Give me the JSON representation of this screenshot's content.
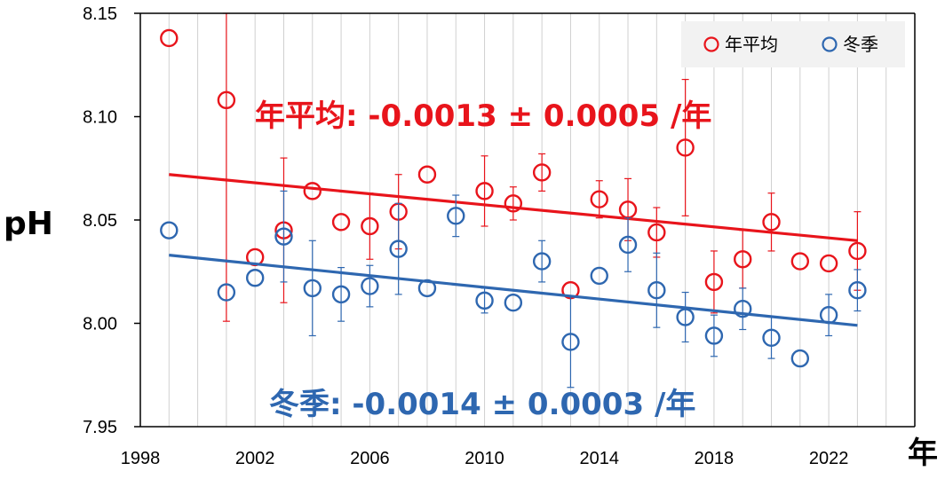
{
  "chart_data": {
    "type": "scatter",
    "xlabel": "年",
    "ylabel": "pH",
    "xlim": [
      1998,
      2025
    ],
    "ylim": [
      7.95,
      8.15
    ],
    "xticks": [
      "1998",
      "2002",
      "2006",
      "2010",
      "2014",
      "2018",
      "2022"
    ],
    "yticks": [
      "7.95",
      "8.00",
      "8.05",
      "8.10",
      "8.15"
    ],
    "grid": "vertical",
    "legend_position": "top-right",
    "series": [
      {
        "name": "年平均",
        "color": "#e8141b",
        "marker": "open-circle",
        "points": [
          {
            "x": 1999,
            "y": 8.138,
            "err": null
          },
          {
            "x": 2001,
            "y": 8.108,
            "err": 0.107
          },
          {
            "x": 2002,
            "y": 8.032,
            "err": null
          },
          {
            "x": 2003,
            "y": 8.045,
            "err": 0.035
          },
          {
            "x": 2004,
            "y": 8.064,
            "err": null
          },
          {
            "x": 2005,
            "y": 8.049,
            "err": null
          },
          {
            "x": 2006,
            "y": 8.047,
            "err": 0.016
          },
          {
            "x": 2007,
            "y": 8.054,
            "err": 0.018
          },
          {
            "x": 2008,
            "y": 8.072,
            "err": null
          },
          {
            "x": 2010,
            "y": 8.064,
            "err": 0.017
          },
          {
            "x": 2011,
            "y": 8.058,
            "err": 0.008
          },
          {
            "x": 2012,
            "y": 8.073,
            "err": 0.009
          },
          {
            "x": 2013,
            "y": 8.016,
            "err": null
          },
          {
            "x": 2014,
            "y": 8.06,
            "err": 0.009
          },
          {
            "x": 2015,
            "y": 8.055,
            "err": 0.015
          },
          {
            "x": 2016,
            "y": 8.044,
            "err": 0.012
          },
          {
            "x": 2017,
            "y": 8.085,
            "err": 0.033
          },
          {
            "x": 2018,
            "y": 8.02,
            "err": 0.015
          },
          {
            "x": 2019,
            "y": 8.031,
            "err": 0.014
          },
          {
            "x": 2020,
            "y": 8.049,
            "err": 0.014
          },
          {
            "x": 2021,
            "y": 8.03,
            "err": null
          },
          {
            "x": 2022,
            "y": 8.029,
            "err": null
          },
          {
            "x": 2023,
            "y": 8.035,
            "err": 0.019
          }
        ],
        "trend": {
          "x": [
            1999,
            2023
          ],
          "y": [
            8.072,
            8.04
          ]
        }
      },
      {
        "name": "冬季",
        "color": "#2e67b0",
        "marker": "open-circle",
        "points": [
          {
            "x": 1999,
            "y": 8.045,
            "err": null
          },
          {
            "x": 2001,
            "y": 8.015,
            "err": null
          },
          {
            "x": 2002,
            "y": 8.022,
            "err": null
          },
          {
            "x": 2003,
            "y": 8.042,
            "err": 0.022
          },
          {
            "x": 2004,
            "y": 8.017,
            "err": 0.023
          },
          {
            "x": 2005,
            "y": 8.014,
            "err": 0.013
          },
          {
            "x": 2006,
            "y": 8.018,
            "err": 0.01
          },
          {
            "x": 2007,
            "y": 8.036,
            "err": 0.022
          },
          {
            "x": 2008,
            "y": 8.017,
            "err": null
          },
          {
            "x": 2009,
            "y": 8.052,
            "err": 0.01
          },
          {
            "x": 2010,
            "y": 8.011,
            "err": 0.006
          },
          {
            "x": 2011,
            "y": 8.01,
            "err": null
          },
          {
            "x": 2012,
            "y": 8.03,
            "err": 0.01
          },
          {
            "x": 2013,
            "y": 7.991,
            "err": 0.022
          },
          {
            "x": 2014,
            "y": 8.023,
            "err": null
          },
          {
            "x": 2015,
            "y": 8.038,
            "err": 0.013
          },
          {
            "x": 2016,
            "y": 8.016,
            "err": 0.018
          },
          {
            "x": 2017,
            "y": 8.003,
            "err": 0.012
          },
          {
            "x": 2018,
            "y": 7.994,
            "err": 0.01
          },
          {
            "x": 2019,
            "y": 8.007,
            "err": 0.01
          },
          {
            "x": 2020,
            "y": 7.993,
            "err": 0.01
          },
          {
            "x": 2021,
            "y": 7.983,
            "err": null
          },
          {
            "x": 2022,
            "y": 8.004,
            "err": 0.01
          },
          {
            "x": 2023,
            "y": 8.016,
            "err": 0.01
          }
        ],
        "trend": {
          "x": [
            1999,
            2023
          ],
          "y": [
            8.033,
            7.999
          ]
        }
      }
    ],
    "annotations": [
      {
        "id": "annual",
        "text": "年平均: -0.0013 ± 0.0005 /年",
        "color": "#e8141b"
      },
      {
        "id": "winter",
        "text": "冬季: -0.0014 ± 0.0003 /年",
        "color": "#2e67b0"
      }
    ]
  }
}
